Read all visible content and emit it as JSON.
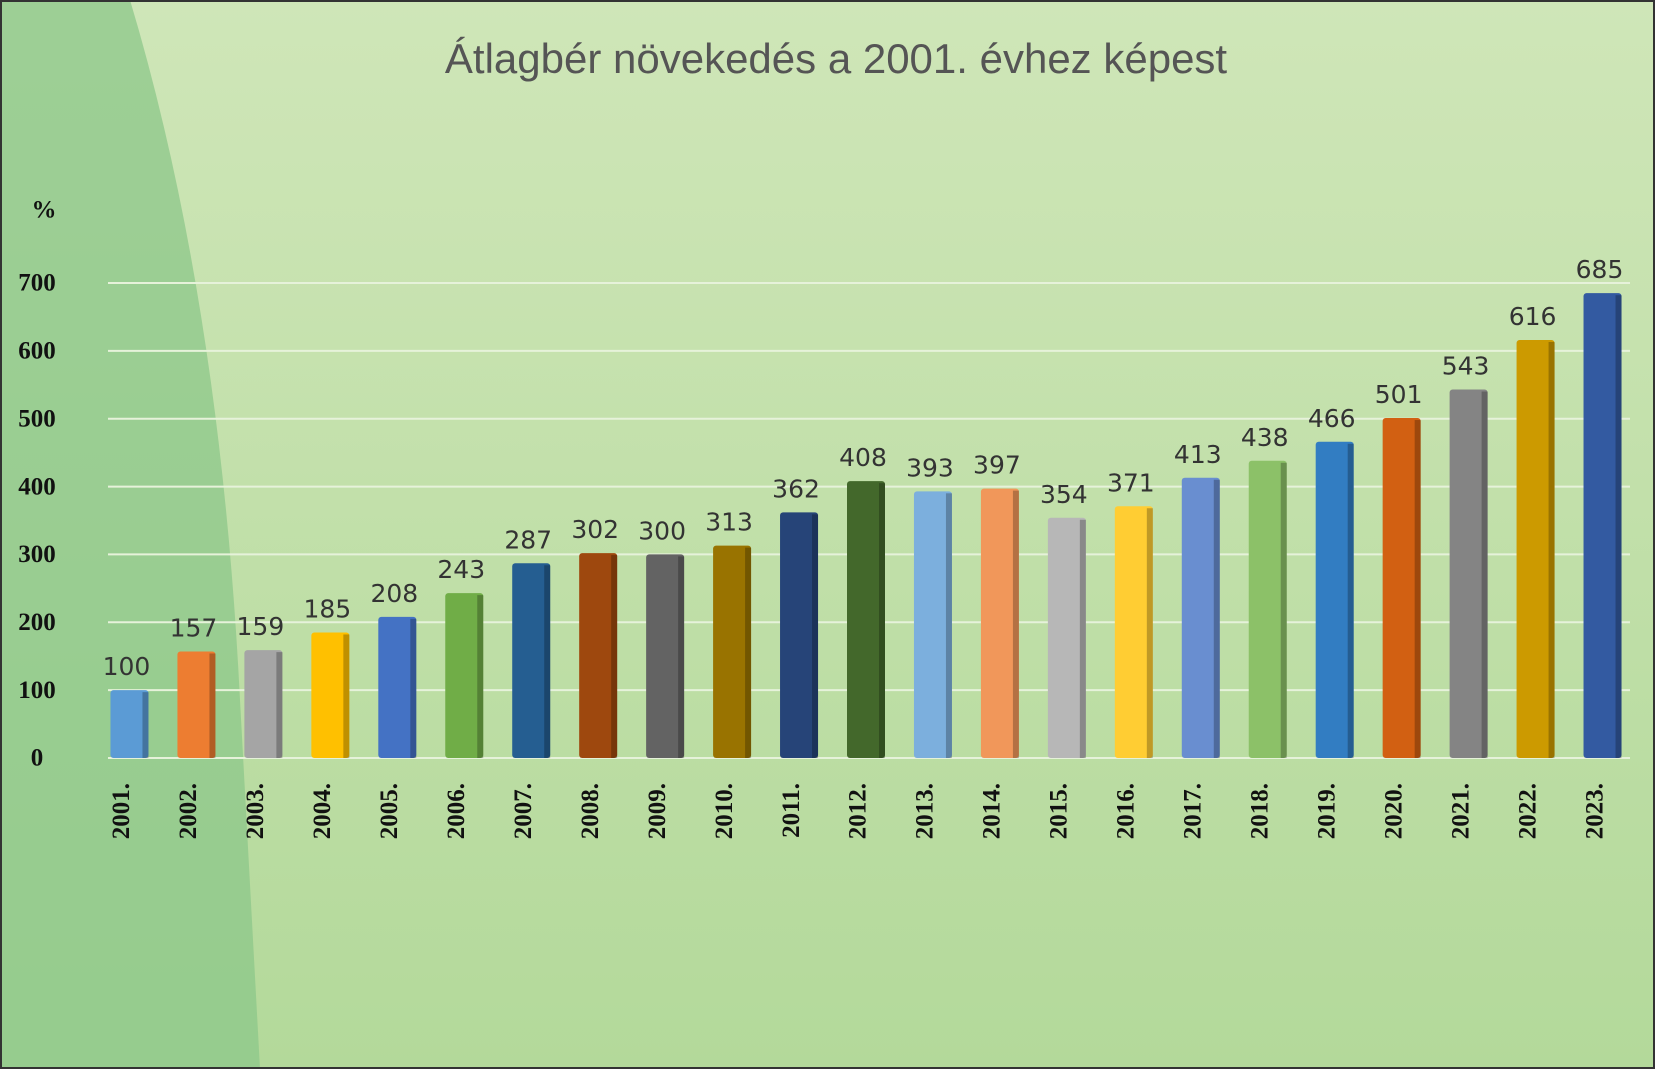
{
  "chart_data": {
    "type": "bar",
    "title": "Átlagbér növekedés a 2001. évhez képest",
    "y_label": "%",
    "categories": [
      "2001.",
      "2002.",
      "2003.",
      "2004.",
      "2005.",
      "2006.",
      "2007.",
      "2008.",
      "2009.",
      "2010.",
      "2011.",
      "2012.",
      "2013.",
      "2014.",
      "2015.",
      "2016.",
      "2017.",
      "2018.",
      "2019.",
      "2020.",
      "2021.",
      "2022.",
      "2023."
    ],
    "values": [
      100,
      157,
      159,
      185,
      208,
      243,
      287,
      302,
      300,
      313,
      362,
      408,
      393,
      397,
      354,
      371,
      413,
      438,
      466,
      501,
      543,
      616,
      685
    ],
    "colors": [
      "#5b9bd5",
      "#ed7d31",
      "#a5a5a5",
      "#ffc000",
      "#4472c4",
      "#70ad47",
      "#255e91",
      "#9e480e",
      "#636363",
      "#997300",
      "#264478",
      "#43682b",
      "#7cafdd",
      "#f1975a",
      "#b7b7b7",
      "#ffcd33",
      "#698ed0",
      "#8cc168",
      "#327dc2",
      "#d26012",
      "#848484",
      "#cc9a00",
      "#335aa1"
    ],
    "ylim": [
      0,
      700
    ],
    "yticks": [
      0,
      100,
      200,
      300,
      400,
      500,
      600,
      700
    ],
    "grid": true
  }
}
